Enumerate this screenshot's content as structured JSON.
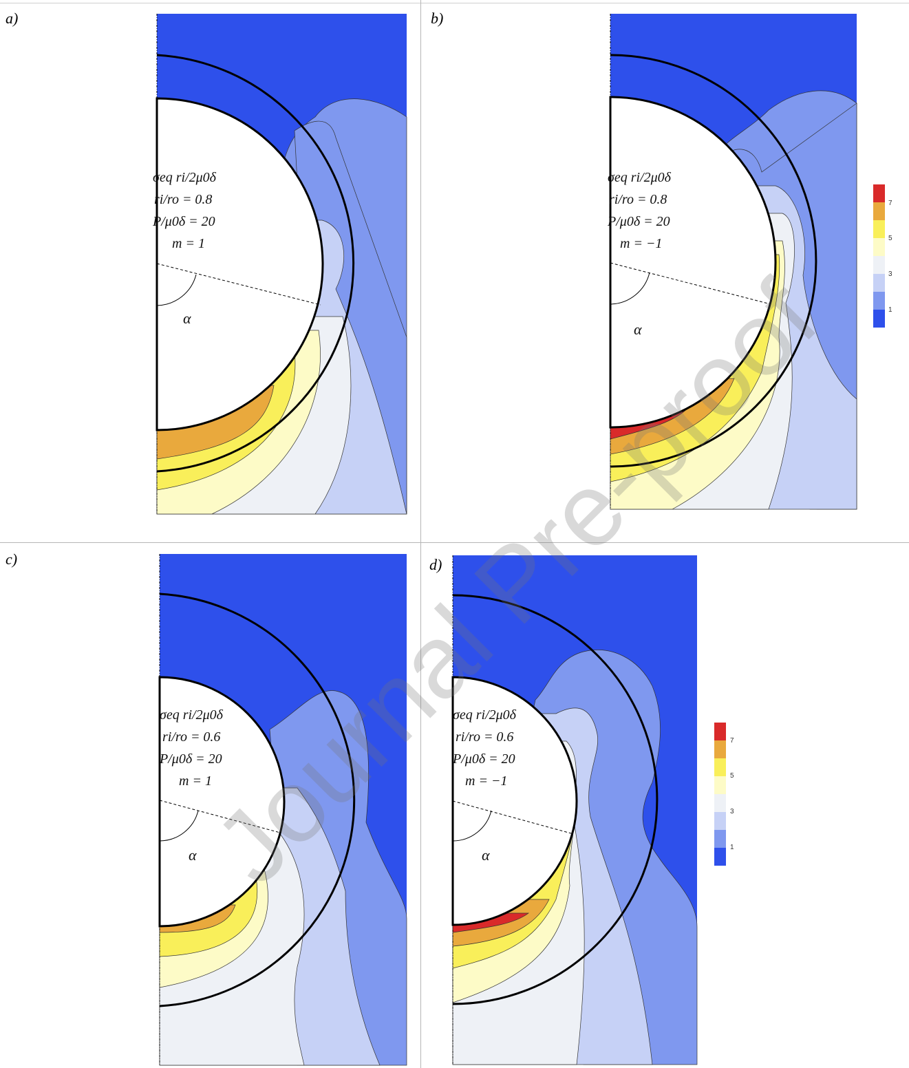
{
  "panels": [
    {
      "id": "a",
      "label": "a)",
      "line1": "σeq ri/2μ0δ",
      "line2": "ri/ro = 0.8",
      "line3": "P/μ0δ = 20",
      "line4": "m = 1",
      "angle": "α"
    },
    {
      "id": "b",
      "label": "b)",
      "line1": "σeq ri/2μ0δ",
      "line2": "ri/ro = 0.8",
      "line3": "P/μ0δ = 20",
      "line4": "m = −1",
      "angle": "α"
    },
    {
      "id": "c",
      "label": "c)",
      "line1": "σeq ri/2μ0δ",
      "line2": "ri/ro = 0.6",
      "line3": "P/μ0δ = 20",
      "line4": "m = 1",
      "angle": "α"
    },
    {
      "id": "d",
      "label": "d)",
      "line1": "σeq ri/2μ0δ",
      "line2": "ri/ro = 0.6",
      "line3": "P/μ0δ = 20",
      "line4": "m = −1",
      "angle": "α"
    }
  ],
  "colorbar": {
    "ticks": [
      "7",
      "5",
      "3",
      "1"
    ],
    "colors": [
      "#d92a2a",
      "#e9a93d",
      "#f9ef5a",
      "#fdfbc7",
      "#eef1f6",
      "#c6d1f6",
      "#7f98ef",
      "#2e50eb"
    ]
  },
  "watermark": "Journal Pre-proof"
}
